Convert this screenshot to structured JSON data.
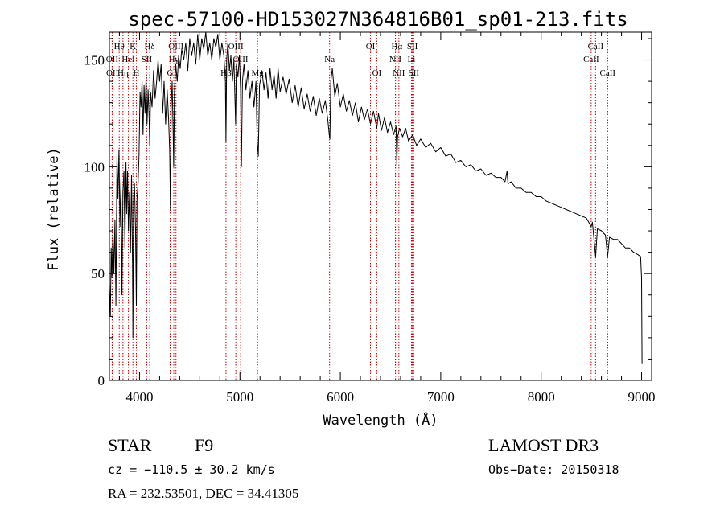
{
  "chart_data": {
    "type": "line",
    "title": "spec-57100-HD153027N364816B01_sp01-213.fits",
    "xlabel": "Wavelength (Å)",
    "ylabel": "Flux (relative)",
    "xlim": [
      3700,
      9100
    ],
    "ylim": [
      0,
      163
    ],
    "x_ticks": [
      4000,
      5000,
      6000,
      7000,
      8000,
      9000
    ],
    "x_tick_labels": [
      "4000",
      "5000",
      "6000",
      "7000",
      "8000",
      "9000"
    ],
    "y_ticks": [
      0,
      50,
      100,
      150
    ],
    "y_tick_labels": [
      "0",
      "50",
      "100",
      "150"
    ],
    "spectrum_points": [
      [
        3700,
        45
      ],
      [
        3710,
        30
      ],
      [
        3718,
        62
      ],
      [
        3725,
        48
      ],
      [
        3735,
        70
      ],
      [
        3745,
        50
      ],
      [
        3755,
        75
      ],
      [
        3765,
        35
      ],
      [
        3775,
        105
      ],
      [
        3785,
        85
      ],
      [
        3795,
        108
      ],
      [
        3805,
        72
      ],
      [
        3815,
        94
      ],
      [
        3825,
        40
      ],
      [
        3835,
        88
      ],
      [
        3845,
        98
      ],
      [
        3855,
        62
      ],
      [
        3865,
        102
      ],
      [
        3872,
        78
      ],
      [
        3880,
        98
      ],
      [
        3890,
        70
      ],
      [
        3900,
        88
      ],
      [
        3910,
        60
      ],
      [
        3920,
        96
      ],
      [
        3930,
        55
      ],
      [
        3934,
        20
      ],
      [
        3940,
        85
      ],
      [
        3950,
        92
      ],
      [
        3960,
        70
      ],
      [
        3968,
        35
      ],
      [
        3975,
        85
      ],
      [
        3985,
        92
      ],
      [
        3995,
        105
      ],
      [
        4005,
        135
      ],
      [
        4015,
        128
      ],
      [
        4025,
        140
      ],
      [
        4035,
        115
      ],
      [
        4045,
        138
      ],
      [
        4055,
        125
      ],
      [
        4065,
        142
      ],
      [
        4075,
        120
      ],
      [
        4085,
        136
      ],
      [
        4095,
        124
      ],
      [
        4101,
        110
      ],
      [
        4110,
        135
      ],
      [
        4125,
        128
      ],
      [
        4140,
        145
      ],
      [
        4155,
        132
      ],
      [
        4170,
        140
      ],
      [
        4185,
        150
      ],
      [
        4200,
        140
      ],
      [
        4215,
        148
      ],
      [
        4230,
        125
      ],
      [
        4245,
        140
      ],
      [
        4260,
        120
      ],
      [
        4275,
        136
      ],
      [
        4290,
        122
      ],
      [
        4300,
        108
      ],
      [
        4308,
        80
      ],
      [
        4315,
        128
      ],
      [
        4325,
        140
      ],
      [
        4335,
        115
      ],
      [
        4340,
        100
      ],
      [
        4348,
        135
      ],
      [
        4360,
        148
      ],
      [
        4375,
        140
      ],
      [
        4390,
        152
      ],
      [
        4405,
        146
      ],
      [
        4420,
        155
      ],
      [
        4440,
        150
      ],
      [
        4460,
        158
      ],
      [
        4480,
        145
      ],
      [
        4500,
        160
      ],
      [
        4520,
        152
      ],
      [
        4540,
        158
      ],
      [
        4560,
        148
      ],
      [
        4580,
        162
      ],
      [
        4600,
        150
      ],
      [
        4620,
        160
      ],
      [
        4640,
        155
      ],
      [
        4660,
        163
      ],
      [
        4680,
        152
      ],
      [
        4700,
        158
      ],
      [
        4720,
        150
      ],
      [
        4740,
        160
      ],
      [
        4760,
        156
      ],
      [
        4780,
        162
      ],
      [
        4800,
        150
      ],
      [
        4820,
        158
      ],
      [
        4840,
        152
      ],
      [
        4855,
        140
      ],
      [
        4861,
        112
      ],
      [
        4868,
        150
      ],
      [
        4880,
        158
      ],
      [
        4895,
        145
      ],
      [
        4910,
        152
      ],
      [
        4925,
        140
      ],
      [
        4940,
        150
      ],
      [
        4957,
        120
      ],
      [
        4965,
        148
      ],
      [
        4980,
        142
      ],
      [
        4995,
        152
      ],
      [
        5007,
        135
      ],
      [
        5015,
        100
      ],
      [
        5025,
        140
      ],
      [
        5040,
        148
      ],
      [
        5060,
        136
      ],
      [
        5080,
        145
      ],
      [
        5100,
        132
      ],
      [
        5120,
        140
      ],
      [
        5140,
        128
      ],
      [
        5160,
        140
      ],
      [
        5172,
        112
      ],
      [
        5183,
        105
      ],
      [
        5195,
        138
      ],
      [
        5220,
        145
      ],
      [
        5240,
        136
      ],
      [
        5260,
        144
      ],
      [
        5280,
        132
      ],
      [
        5300,
        146
      ],
      [
        5320,
        136
      ],
      [
        5340,
        143
      ],
      [
        5360,
        132
      ],
      [
        5380,
        146
      ],
      [
        5400,
        135
      ],
      [
        5430,
        142
      ],
      [
        5460,
        134
      ],
      [
        5490,
        141
      ],
      [
        5520,
        130
      ],
      [
        5550,
        138
      ],
      [
        5580,
        128
      ],
      [
        5610,
        137
      ],
      [
        5640,
        127
      ],
      [
        5670,
        134
      ],
      [
        5700,
        126
      ],
      [
        5730,
        133
      ],
      [
        5760,
        124
      ],
      [
        5790,
        132
      ],
      [
        5820,
        125
      ],
      [
        5850,
        131
      ],
      [
        5875,
        122
      ],
      [
        5890,
        115
      ],
      [
        5896,
        113
      ],
      [
        5905,
        140
      ],
      [
        5920,
        146
      ],
      [
        5945,
        133
      ],
      [
        5970,
        139
      ],
      [
        6000,
        128
      ],
      [
        6030,
        134
      ],
      [
        6060,
        126
      ],
      [
        6090,
        131
      ],
      [
        6120,
        124
      ],
      [
        6150,
        130
      ],
      [
        6180,
        121
      ],
      [
        6210,
        128
      ],
      [
        6240,
        122
      ],
      [
        6270,
        127
      ],
      [
        6300,
        120
      ],
      [
        6330,
        126
      ],
      [
        6363,
        118
      ],
      [
        6380,
        125
      ],
      [
        6410,
        117
      ],
      [
        6440,
        123
      ],
      [
        6470,
        116
      ],
      [
        6500,
        121
      ],
      [
        6530,
        115
      ],
      [
        6555,
        119
      ],
      [
        6563,
        101
      ],
      [
        6570,
        114
      ],
      [
        6590,
        118
      ],
      [
        6620,
        114
      ],
      [
        6650,
        118
      ],
      [
        6680,
        112
      ],
      [
        6720,
        115
      ],
      [
        6760,
        110
      ],
      [
        6800,
        113
      ],
      [
        6850,
        109
      ],
      [
        6900,
        111
      ],
      [
        6950,
        107
      ],
      [
        7000,
        109
      ],
      [
        7050,
        105
      ],
      [
        7100,
        106
      ],
      [
        7150,
        102
      ],
      [
        7200,
        103
      ],
      [
        7250,
        100
      ],
      [
        7300,
        101
      ],
      [
        7350,
        98
      ],
      [
        7400,
        99
      ],
      [
        7450,
        96
      ],
      [
        7500,
        97
      ],
      [
        7550,
        95
      ],
      [
        7600,
        95
      ],
      [
        7640,
        93
      ],
      [
        7660,
        98
      ],
      [
        7670,
        92
      ],
      [
        7700,
        93
      ],
      [
        7750,
        90
      ],
      [
        7800,
        90
      ],
      [
        7850,
        88
      ],
      [
        7900,
        88
      ],
      [
        7950,
        86
      ],
      [
        8000,
        86
      ],
      [
        8050,
        84
      ],
      [
        8100,
        83
      ],
      [
        8150,
        82
      ],
      [
        8200,
        81
      ],
      [
        8250,
        80
      ],
      [
        8300,
        79
      ],
      [
        8350,
        78
      ],
      [
        8400,
        77
      ],
      [
        8450,
        76
      ],
      [
        8498,
        72
      ],
      [
        8510,
        74
      ],
      [
        8542,
        58
      ],
      [
        8560,
        71
      ],
      [
        8600,
        70
      ],
      [
        8640,
        68
      ],
      [
        8662,
        58
      ],
      [
        8680,
        67
      ],
      [
        8720,
        66
      ],
      [
        8760,
        66
      ],
      [
        8800,
        64
      ],
      [
        8840,
        62
      ],
      [
        8880,
        62
      ],
      [
        8920,
        60
      ],
      [
        8960,
        59
      ],
      [
        8990,
        58
      ],
      [
        9000,
        48
      ],
      [
        9005,
        8
      ]
    ],
    "emission_lines": [
      {
        "name": "OII",
        "wavelength": 3727,
        "label_row": 1
      },
      {
        "name": "OII",
        "wavelength": 3729,
        "label_row": 2
      },
      {
        "name": "Hθ",
        "wavelength": 3798,
        "label_row": 0
      },
      {
        "name": "Hη",
        "wavelength": 3835,
        "label_row": 2
      },
      {
        "name": "HeI",
        "wavelength": 3889,
        "label_row": 1
      },
      {
        "name": "K",
        "wavelength": 3934,
        "label_row": 0
      },
      {
        "name": "H",
        "wavelength": 3968,
        "label_row": 2
      },
      {
        "name": "SII",
        "wavelength": 4072,
        "label_row": 1
      },
      {
        "name": "Hδ",
        "wavelength": 4101,
        "label_row": 0
      },
      {
        "name": "OIII",
        "wavelength": 4363,
        "label_row": 0
      },
      {
        "name": "Hγ",
        "wavelength": 4341,
        "label_row": 1
      },
      {
        "name": "G",
        "wavelength": 4305,
        "label_row": 2
      },
      {
        "name": "OIII",
        "wavelength": 4959,
        "label_row": 0
      },
      {
        "name": "OIII",
        "wavelength": 5007,
        "label_row": 1
      },
      {
        "name": "Hβ",
        "wavelength": 4861,
        "label_row": 2
      },
      {
        "name": "Mg",
        "wavelength": 5175,
        "label_row": 2
      },
      {
        "name": "Na",
        "wavelength": 5893,
        "label_row": 1
      },
      {
        "name": "OI",
        "wavelength": 6300,
        "label_row": 0
      },
      {
        "name": "OI",
        "wavelength": 6363,
        "label_row": 2
      },
      {
        "name": "Hα",
        "wavelength": 6563,
        "label_row": 0
      },
      {
        "name": "NII",
        "wavelength": 6548,
        "label_row": 1
      },
      {
        "name": "NII",
        "wavelength": 6583,
        "label_row": 2
      },
      {
        "name": "SII",
        "wavelength": 6717,
        "label_row": 0
      },
      {
        "name": "Li",
        "wavelength": 6708,
        "label_row": 1
      },
      {
        "name": "SII",
        "wavelength": 6731,
        "label_row": 2
      },
      {
        "name": "CaII",
        "wavelength": 8542,
        "label_row": 0
      },
      {
        "name": "CaII",
        "wavelength": 8498,
        "label_row": 1
      },
      {
        "name": "CaII",
        "wavelength": 8662,
        "label_row": 2
      }
    ],
    "colors": {
      "spectrum": "#000000",
      "lines": "#c00000",
      "axes": "#000000"
    }
  },
  "info": {
    "object_class": "STAR",
    "subclass": "F9",
    "survey": "LAMOST DR3",
    "cz": "cz = −110.5 ± 30.2 km/s",
    "obs_date": "Obs−Date: 20150318",
    "coords": "RA = 232.53501, DEC =  34.41305"
  }
}
